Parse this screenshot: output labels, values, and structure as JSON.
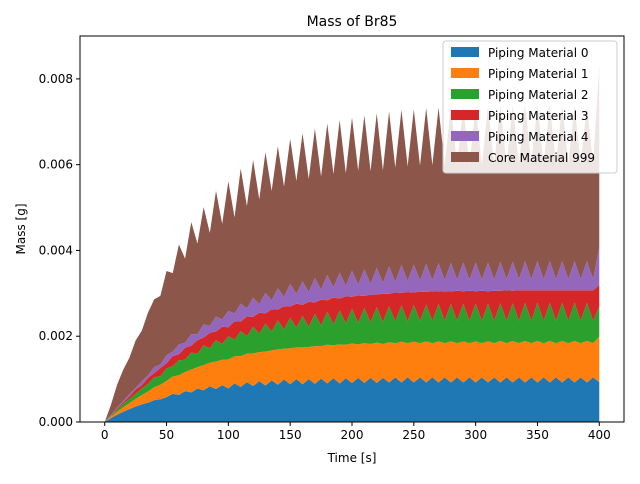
{
  "chart_data": {
    "type": "area",
    "stacked": true,
    "title": "Mass of Br85",
    "xlabel": "Time [s]",
    "ylabel": "Mass [g]",
    "xlim": [
      -20,
      420
    ],
    "ylim": [
      0,
      0.009
    ],
    "xticks": [
      0,
      50,
      100,
      150,
      200,
      250,
      300,
      350,
      400
    ],
    "xtick_labels": [
      "0",
      "50",
      "100",
      "150",
      "200",
      "250",
      "300",
      "350",
      "400"
    ],
    "yticks": [
      0.0,
      0.002,
      0.004,
      0.006,
      0.008
    ],
    "ytick_labels": [
      "0.000",
      "0.002",
      "0.004",
      "0.006",
      "0.008"
    ],
    "grid": false,
    "legend_position": "top-right",
    "x": [
      0,
      5,
      10,
      15,
      20,
      25,
      30,
      35,
      40,
      45,
      50,
      55,
      60,
      65,
      70,
      75,
      80,
      85,
      90,
      95,
      100,
      105,
      110,
      115,
      120,
      125,
      130,
      135,
      140,
      145,
      150,
      155,
      160,
      165,
      170,
      175,
      180,
      185,
      190,
      195,
      200,
      205,
      210,
      215,
      220,
      225,
      230,
      235,
      240,
      245,
      250,
      255,
      260,
      265,
      270,
      275,
      280,
      285,
      290,
      295,
      300,
      305,
      310,
      315,
      320,
      325,
      330,
      335,
      340,
      345,
      350,
      355,
      360,
      365,
      370,
      375,
      380,
      385,
      390,
      395,
      400
    ],
    "series": [
      {
        "name": "Piping Material 0",
        "color": "#1f77b4",
        "values": [
          0.0,
          9e-05,
          0.00017,
          0.00024,
          0.0003,
          0.00036,
          0.00041,
          0.00045,
          0.00051,
          0.00053,
          0.00058,
          0.00066,
          0.00063,
          0.00072,
          0.00069,
          0.00078,
          0.00074,
          0.00083,
          0.00077,
          0.00086,
          0.00078,
          0.0009,
          0.00082,
          0.00093,
          0.00084,
          0.00095,
          0.00085,
          0.00097,
          0.00087,
          0.00099,
          0.00088,
          0.001,
          0.00088,
          0.001,
          0.00089,
          0.00101,
          0.0009,
          0.00102,
          0.0009,
          0.00102,
          0.00091,
          0.00103,
          0.00091,
          0.00103,
          0.00091,
          0.00103,
          0.00092,
          0.00104,
          0.00092,
          0.00104,
          0.00092,
          0.00104,
          0.00092,
          0.00104,
          0.00092,
          0.00104,
          0.00092,
          0.00104,
          0.00092,
          0.00104,
          0.00092,
          0.00104,
          0.00092,
          0.00104,
          0.00092,
          0.00104,
          0.00092,
          0.00104,
          0.00092,
          0.00104,
          0.00092,
          0.00104,
          0.00092,
          0.00104,
          0.00092,
          0.00104,
          0.00092,
          0.00104,
          0.00092,
          0.00104,
          0.00093
        ]
      },
      {
        "name": "Piping Material 1",
        "color": "#ff7f0e",
        "values": [
          0.0,
          3e-05,
          7e-05,
          0.0001,
          0.00014,
          0.00018,
          0.00022,
          0.00026,
          0.0003,
          0.00034,
          0.00038,
          0.0004,
          0.00046,
          0.00045,
          0.00053,
          0.0005,
          0.00059,
          0.00055,
          0.00064,
          0.00059,
          0.00068,
          0.00063,
          0.00072,
          0.00066,
          0.00076,
          0.00068,
          0.00079,
          0.0007,
          0.00082,
          0.00072,
          0.00084,
          0.00074,
          0.00086,
          0.00075,
          0.00088,
          0.00076,
          0.0009,
          0.00077,
          0.00091,
          0.00078,
          0.00092,
          0.00078,
          0.00093,
          0.00079,
          0.00094,
          0.00079,
          0.00094,
          0.0008,
          0.00095,
          0.0008,
          0.00095,
          0.0008,
          0.00096,
          0.0008,
          0.00096,
          0.0008,
          0.00096,
          0.0008,
          0.00096,
          0.0008,
          0.00096,
          0.0008,
          0.00096,
          0.0008,
          0.00097,
          0.0008,
          0.00097,
          0.0008,
          0.00097,
          0.0008,
          0.00097,
          0.0008,
          0.00097,
          0.0008,
          0.00097,
          0.0008,
          0.00097,
          0.0008,
          0.00097,
          0.0008,
          0.00106
        ]
      },
      {
        "name": "Piping Material 2",
        "color": "#2ca02c",
        "values": [
          0.0,
          2e-05,
          5e-05,
          8e-05,
          0.0001,
          0.00012,
          0.00015,
          0.00018,
          0.00023,
          0.0002,
          0.00029,
          0.00024,
          0.00035,
          0.00028,
          0.0004,
          0.00031,
          0.00046,
          0.00034,
          0.0005,
          0.00037,
          0.00054,
          0.00039,
          0.00058,
          0.00041,
          0.00062,
          0.00043,
          0.00065,
          0.00044,
          0.00068,
          0.00045,
          0.00071,
          0.00046,
          0.00073,
          0.00047,
          0.00075,
          0.00048,
          0.00077,
          0.00049,
          0.00079,
          0.0005,
          0.00081,
          0.0005,
          0.00082,
          0.0005,
          0.00083,
          0.00051,
          0.00084,
          0.00051,
          0.00085,
          0.00051,
          0.00086,
          0.00052,
          0.00086,
          0.00052,
          0.00087,
          0.00052,
          0.00087,
          0.00052,
          0.00088,
          0.00052,
          0.00088,
          0.00052,
          0.00088,
          0.00052,
          0.00088,
          0.00052,
          0.00088,
          0.00052,
          0.00089,
          0.00052,
          0.00089,
          0.00052,
          0.00089,
          0.00052,
          0.00089,
          0.00052,
          0.00089,
          0.00052,
          0.00089,
          0.00052,
          0.0007
        ]
      },
      {
        "name": "Piping Material 3",
        "color": "#d62728",
        "values": [
          0.0,
          1e-05,
          3e-05,
          4e-05,
          6e-05,
          0.0001,
          8e-05,
          0.00014,
          0.0001,
          0.00019,
          0.00012,
          0.00024,
          0.00014,
          0.00028,
          0.00016,
          0.00032,
          0.00018,
          0.00036,
          0.0002,
          0.0004,
          0.00021,
          0.00043,
          0.00022,
          0.00046,
          0.00023,
          0.00049,
          0.00024,
          0.00052,
          0.00025,
          0.00054,
          0.00026,
          0.00056,
          0.00026,
          0.00058,
          0.00027,
          0.0006,
          0.00027,
          0.00062,
          0.00028,
          0.00063,
          0.00028,
          0.00064,
          0.00028,
          0.00065,
          0.00029,
          0.00066,
          0.00029,
          0.00067,
          0.00029,
          0.00068,
          0.00029,
          0.00068,
          0.00029,
          0.00069,
          0.00029,
          0.00069,
          0.00029,
          0.0007,
          0.00029,
          0.0007,
          0.00029,
          0.0007,
          0.00029,
          0.0007,
          0.00029,
          0.00071,
          0.00029,
          0.00071,
          0.00029,
          0.00071,
          0.00029,
          0.00071,
          0.00029,
          0.00071,
          0.00029,
          0.00071,
          0.00029,
          0.00071,
          0.00029,
          0.00071,
          0.0005
        ]
      },
      {
        "name": "Piping Material 4",
        "color": "#9467bd",
        "values": [
          0.0,
          1e-05,
          2e-05,
          3e-05,
          5e-05,
          4e-05,
          9e-05,
          6e-05,
          0.00014,
          8e-05,
          0.00019,
          0.0001,
          0.00023,
          0.00012,
          0.00027,
          0.00014,
          0.00031,
          0.00016,
          0.00035,
          0.00017,
          0.00038,
          0.00018,
          0.00042,
          0.00019,
          0.00045,
          0.0002,
          0.00048,
          0.00021,
          0.0005,
          0.00022,
          0.00053,
          0.00023,
          0.00055,
          0.00023,
          0.00057,
          0.00024,
          0.00059,
          0.00024,
          0.0006,
          0.00025,
          0.00061,
          0.00025,
          0.00062,
          0.00025,
          0.00063,
          0.00025,
          0.00064,
          0.00025,
          0.00065,
          0.00026,
          0.00065,
          0.00026,
          0.00066,
          0.00026,
          0.00066,
          0.00026,
          0.00067,
          0.00026,
          0.00067,
          0.00026,
          0.00067,
          0.00026,
          0.00067,
          0.00026,
          0.00067,
          0.00026,
          0.00068,
          0.00026,
          0.00068,
          0.00026,
          0.00068,
          0.00026,
          0.00068,
          0.00026,
          0.00068,
          0.00026,
          0.00068,
          0.00026,
          0.00068,
          0.00026,
          0.00088
        ]
      },
      {
        "name": "Core Material 999",
        "color": "#8c564b",
        "values": [
          0.0,
          0.00024,
          0.00053,
          0.00073,
          0.00085,
          0.0011,
          0.00118,
          0.00146,
          0.00158,
          0.0016,
          0.00196,
          0.00183,
          0.00233,
          0.00196,
          0.00261,
          0.00211,
          0.00273,
          0.00217,
          0.00293,
          0.00223,
          0.00302,
          0.00224,
          0.00315,
          0.00238,
          0.00321,
          0.00244,
          0.00328,
          0.00255,
          0.00331,
          0.00257,
          0.00338,
          0.00263,
          0.00345,
          0.00264,
          0.00348,
          0.00263,
          0.00353,
          0.00264,
          0.00356,
          0.00262,
          0.00357,
          0.00266,
          0.00359,
          0.00263,
          0.0036,
          0.00263,
          0.00361,
          0.00266,
          0.00362,
          0.00267,
          0.00362,
          0.00268,
          0.00363,
          0.00268,
          0.00363,
          0.00268,
          0.00364,
          0.00268,
          0.00364,
          0.00268,
          0.00364,
          0.00268,
          0.00364,
          0.00269,
          0.00364,
          0.00269,
          0.00364,
          0.00269,
          0.00364,
          0.00269,
          0.00364,
          0.00269,
          0.00364,
          0.00269,
          0.00364,
          0.00269,
          0.00364,
          0.00269,
          0.00364,
          0.00269,
          0.00426
        ]
      }
    ]
  }
}
